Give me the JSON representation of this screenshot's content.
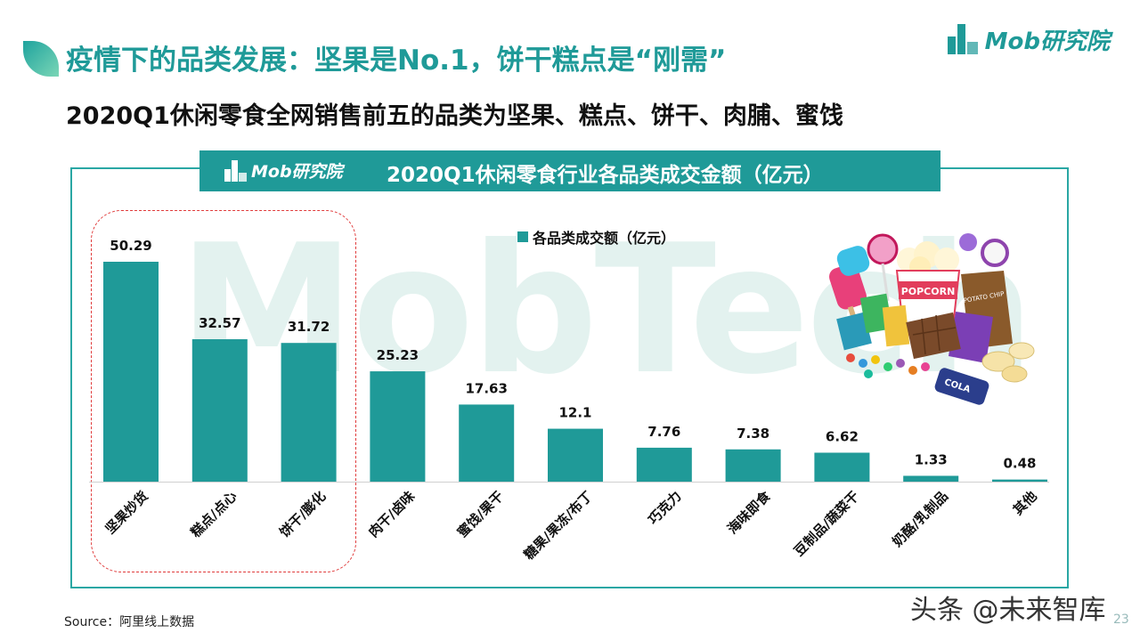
{
  "header": {
    "title": "疫情下的品类发展：坚果是No.1，饼干糕点是“刚需”",
    "subtitle": "2020Q1休闲零食全网销售前五的品类为坚果、糕点、饼干、肉脯、蜜饯",
    "brand": "Mob研究院"
  },
  "panel": {
    "brand": "Mob研究院",
    "title": "2020Q1休闲零食行业各品类成交金额（亿元）",
    "watermark": "MobTech"
  },
  "chart_data": {
    "type": "bar",
    "title": "2020Q1休闲零食行业各品类成交金额（亿元）",
    "categories": [
      "坚果炒货",
      "糕点/点心",
      "饼干/膨化",
      "肉干/卤味",
      "蜜饯/果干",
      "糖果/果冻/布丁",
      "巧克力",
      "海味即食",
      "豆制品/蔬菜干",
      "奶酪/乳制品",
      "其他"
    ],
    "series": [
      {
        "name": "各品类成交额（亿元）",
        "values": [
          50.29,
          32.57,
          31.72,
          25.23,
          17.63,
          12.1,
          7.76,
          7.38,
          6.62,
          1.33,
          0.48
        ]
      }
    ],
    "value_labels": [
      "50.29",
      "32.57",
      "31.72",
      "25.23",
      "17.63",
      "12.1",
      "7.76",
      "7.38",
      "6.62",
      "1.33",
      "0.48"
    ],
    "ylim": [
      0,
      50.29
    ],
    "legend_position": "top-center",
    "grid": false,
    "highlighted_categories": [
      "坚果炒货",
      "糕点/点心",
      "饼干/膨化"
    ],
    "colors": {
      "bar": "#1f9a98",
      "highlight": "#e03b3b"
    }
  },
  "illustration": {
    "popcorn_label": "POPCORN",
    "chips_label": "POTATO CHIP",
    "cola_label": "COLA"
  },
  "footer": {
    "source": "Source：阿里线上数据",
    "watermark": "头条 @未来智库",
    "page": "23"
  }
}
